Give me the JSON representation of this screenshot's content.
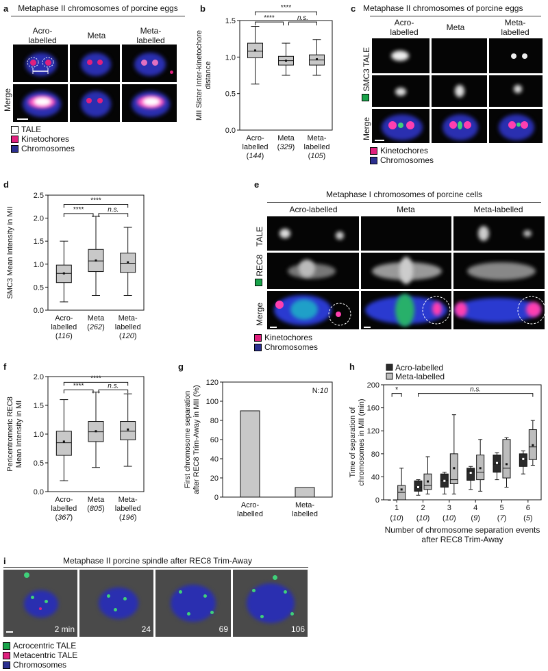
{
  "panels": {
    "a": {
      "label": "a",
      "title": "Metaphase II chromosomes of porcine eggs",
      "columns": [
        "Acro-\nlabelled",
        "Meta",
        "Meta-\nlabelled"
      ],
      "rows": [
        "Merge"
      ],
      "legend": [
        {
          "label": "TALE",
          "color": "#ffffff"
        },
        {
          "label": "Kinetochores",
          "color": "#e0207e"
        },
        {
          "label": "Chromosomes",
          "color": "#2b2f8f"
        }
      ]
    },
    "b": {
      "label": "b"
    },
    "c": {
      "label": "c",
      "title": "Metaphase II chromosomes of porcine eggs",
      "columns": [
        "Acro-\nlabelled",
        "Meta",
        "Meta-\nlabelled"
      ],
      "rows": [
        "TALE",
        "SMC3",
        "Merge"
      ],
      "legend": [
        {
          "label": "Kinetochores",
          "color": "#e0207e"
        },
        {
          "label": "Chromosomes",
          "color": "#2b2f8f"
        }
      ],
      "marker_color": "#19a34a"
    },
    "d": {
      "label": "d"
    },
    "e": {
      "label": "e",
      "title": "Metaphase I chromosomes of porcine cells",
      "columns": [
        "Acro-labelled",
        "Meta",
        "Meta-labelled"
      ],
      "rows": [
        "TALE",
        "REC8",
        "Merge"
      ],
      "legend": [
        {
          "label": "Kinetochores",
          "color": "#e0207e"
        },
        {
          "label": "Chromosomes",
          "color": "#2b2f8f"
        }
      ],
      "marker_color": "#19a34a"
    },
    "f": {
      "label": "f"
    },
    "g": {
      "label": "g"
    },
    "h": {
      "label": "h"
    },
    "i": {
      "label": "i",
      "title": "Metaphase II porcine spindle after REC8 Trim-Away",
      "times": [
        "2 min",
        "24",
        "69",
        "106"
      ],
      "legend": [
        {
          "label": "Acrocentric TALE",
          "color": "#19a34a"
        },
        {
          "label": "Metacentric TALE",
          "color": "#e0207e"
        },
        {
          "label": "Chromosomes",
          "color": "#2b2f8f"
        }
      ]
    }
  },
  "chart_data": [
    {
      "id": "b",
      "type": "box",
      "ylabel": "MII Sister Inter-kinetochore\ndistance",
      "ylim": [
        0,
        1.5
      ],
      "yticks": [
        "0.0",
        "0.5",
        "1.0",
        "1.5"
      ],
      "categories": [
        "Acro-\nlabelled",
        "Meta",
        "Meta-\nlabelled"
      ],
      "n": [
        "144",
        "329",
        "105"
      ],
      "boxes": [
        {
          "min": 0.63,
          "q1": 0.99,
          "median": 1.08,
          "q3": 1.19,
          "max": 1.42,
          "mean": 1.09
        },
        {
          "min": 0.75,
          "q1": 0.89,
          "median": 0.95,
          "q3": 1.01,
          "max": 1.19,
          "mean": 0.95
        },
        {
          "min": 0.75,
          "q1": 0.89,
          "median": 0.96,
          "q3": 1.03,
          "max": 1.24,
          "mean": 0.97
        }
      ],
      "significance": [
        {
          "from": 0,
          "to": 1,
          "label": "****",
          "level": 1.48
        },
        {
          "from": 0,
          "to": 2,
          "label": "****",
          "level": 1.62
        },
        {
          "from": 1,
          "to": 2,
          "label": "n.s.",
          "level": 1.48
        }
      ]
    },
    {
      "id": "d",
      "type": "box",
      "ylabel": "SMC3 Mean Intensity in MII",
      "ylim": [
        0,
        2.5
      ],
      "yticks": [
        "0.0",
        "0.5",
        "1.0",
        "1.5",
        "2.0",
        "2.5"
      ],
      "categories": [
        "Acro-\nlabelled",
        "Meta",
        "Meta-\nlabelled"
      ],
      "n": [
        "116",
        "262",
        "120"
      ],
      "boxes": [
        {
          "min": 0.18,
          "q1": 0.6,
          "median": 0.8,
          "q3": 0.98,
          "max": 1.5,
          "mean": 0.8
        },
        {
          "min": 0.32,
          "q1": 0.84,
          "median": 1.07,
          "q3": 1.32,
          "max": 2.04,
          "mean": 1.08
        },
        {
          "min": 0.32,
          "q1": 0.82,
          "median": 1.02,
          "q3": 1.24,
          "max": 1.8,
          "mean": 1.04
        }
      ],
      "significance": [
        {
          "from": 0,
          "to": 1,
          "label": "****",
          "level": 2.1
        },
        {
          "from": 0,
          "to": 2,
          "label": "****",
          "level": 2.3
        },
        {
          "from": 1,
          "to": 2,
          "label": "n.s.",
          "level": 2.1
        }
      ]
    },
    {
      "id": "f",
      "type": "box",
      "ylabel": "Pericentromeric REC8\nMean Intensity in MI",
      "ylim": [
        0,
        2.0
      ],
      "yticks": [
        "0.0",
        "0.5",
        "1.0",
        "1.5",
        "2.0"
      ],
      "categories": [
        "Acro-\nlabelled",
        "Meta",
        "Meta-\nlabelled"
      ],
      "n": [
        "367",
        "805",
        "196"
      ],
      "boxes": [
        {
          "min": 0.19,
          "q1": 0.63,
          "median": 0.85,
          "q3": 1.05,
          "max": 1.6,
          "mean": 0.87
        },
        {
          "min": 0.42,
          "q1": 0.87,
          "median": 1.04,
          "q3": 1.22,
          "max": 1.73,
          "mean": 1.05
        },
        {
          "min": 0.44,
          "q1": 0.9,
          "median": 1.05,
          "q3": 1.22,
          "max": 1.7,
          "mean": 1.08
        }
      ],
      "significance": [
        {
          "from": 0,
          "to": 1,
          "label": "****",
          "level": 1.77
        },
        {
          "from": 0,
          "to": 2,
          "label": "****",
          "level": 1.9
        },
        {
          "from": 1,
          "to": 2,
          "label": "n.s.",
          "level": 1.77
        }
      ]
    },
    {
      "id": "g",
      "type": "bar",
      "ylabel": "First chromosome separation\nafter REC8 Trim-Away in MII (%)",
      "ylim": [
        0,
        120
      ],
      "yticks": [
        "0",
        "20",
        "40",
        "60",
        "80",
        "100",
        "120"
      ],
      "categories": [
        "Acro-\nlabelled",
        "Meta-\nlabelled"
      ],
      "values": [
        90,
        10
      ],
      "annotation_prefix": "N:",
      "annotation_n": "10"
    },
    {
      "id": "h",
      "type": "box",
      "ylabel": "Time of separation of\nchromosomes in MII (min)",
      "xlabel": "Number of chromosome separation events\nafter REC8 Trim-Away",
      "ylim": [
        0,
        200
      ],
      "yticks": [
        "0",
        "40",
        "80",
        "120",
        "160",
        "200"
      ],
      "categories": [
        "1",
        "2",
        "3",
        "4",
        "5",
        "6"
      ],
      "n": [
        "10",
        "10",
        "10",
        "9",
        "7",
        "5"
      ],
      "series": [
        {
          "name": "Acro-labelled",
          "color": "#2b2b2b",
          "boxes": [
            {
              "min": 0,
              "q1": 0,
              "median": 0,
              "q3": 0,
              "max": 0,
              "mean": 0
            },
            {
              "min": 8,
              "q1": 15,
              "median": 21,
              "q3": 33,
              "max": 35,
              "mean": 22
            },
            {
              "min": 10,
              "q1": 22,
              "median": 34,
              "q3": 45,
              "max": 48,
              "mean": 33
            },
            {
              "min": 18,
              "q1": 34,
              "median": 50,
              "q3": 55,
              "max": 58,
              "mean": 47
            },
            {
              "min": 35,
              "q1": 48,
              "median": 62,
              "q3": 78,
              "max": 82,
              "mean": 64
            },
            {
              "min": 45,
              "q1": 58,
              "median": 70,
              "q3": 80,
              "max": 85,
              "mean": 71
            }
          ]
        },
        {
          "name": "Meta-labelled",
          "color": "#bdbdbd",
          "boxes": [
            {
              "min": 0,
              "q1": 0,
              "median": 13,
              "q3": 25,
              "max": 55,
              "mean": 18
            },
            {
              "min": 10,
              "q1": 18,
              "median": 25,
              "q3": 45,
              "max": 75,
              "mean": 32
            },
            {
              "min": 10,
              "q1": 28,
              "median": 35,
              "q3": 80,
              "max": 148,
              "mean": 55
            },
            {
              "min": 15,
              "q1": 35,
              "median": 48,
              "q3": 78,
              "max": 105,
              "mean": 55
            },
            {
              "min": 22,
              "q1": 38,
              "median": 55,
              "q3": 105,
              "max": 108,
              "mean": 62
            },
            {
              "min": 60,
              "q1": 70,
              "median": 92,
              "q3": 122,
              "max": 138,
              "mean": 95
            }
          ]
        }
      ],
      "significance": [
        {
          "from": 0,
          "to": 0,
          "label": "*",
          "level": 185
        },
        {
          "from": 1,
          "to": 5,
          "label": "n.s.",
          "level": 185
        }
      ]
    }
  ]
}
